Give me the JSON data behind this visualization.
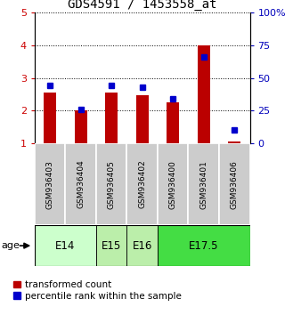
{
  "title": "GDS4591 / 1453558_at",
  "samples": [
    "GSM936403",
    "GSM936404",
    "GSM936405",
    "GSM936402",
    "GSM936400",
    "GSM936401",
    "GSM936406"
  ],
  "transformed_count": [
    2.55,
    2.02,
    2.56,
    2.47,
    2.26,
    4.01,
    1.05
  ],
  "percentile_rank": [
    44,
    26,
    44,
    43,
    34,
    66,
    10
  ],
  "age_groups": [
    {
      "label": "E14",
      "samples": [
        0,
        1
      ],
      "color": "#ccffcc"
    },
    {
      "label": "E15",
      "samples": [
        2
      ],
      "color": "#bbeeaa"
    },
    {
      "label": "E16",
      "samples": [
        3
      ],
      "color": "#bbeeaa"
    },
    {
      "label": "E17.5",
      "samples": [
        4,
        5,
        6
      ],
      "color": "#44dd44"
    }
  ],
  "ylim_left": [
    1,
    5
  ],
  "ylim_right": [
    0,
    100
  ],
  "yticks_left": [
    1,
    2,
    3,
    4,
    5
  ],
  "yticks_right": [
    0,
    25,
    50,
    75,
    100
  ],
  "bar_color": "#bb0000",
  "marker_color": "#0000cc",
  "tick_color_left": "#cc0000",
  "tick_color_right": "#0000bb",
  "sample_box_color": "#cccccc",
  "bar_width": 0.4
}
